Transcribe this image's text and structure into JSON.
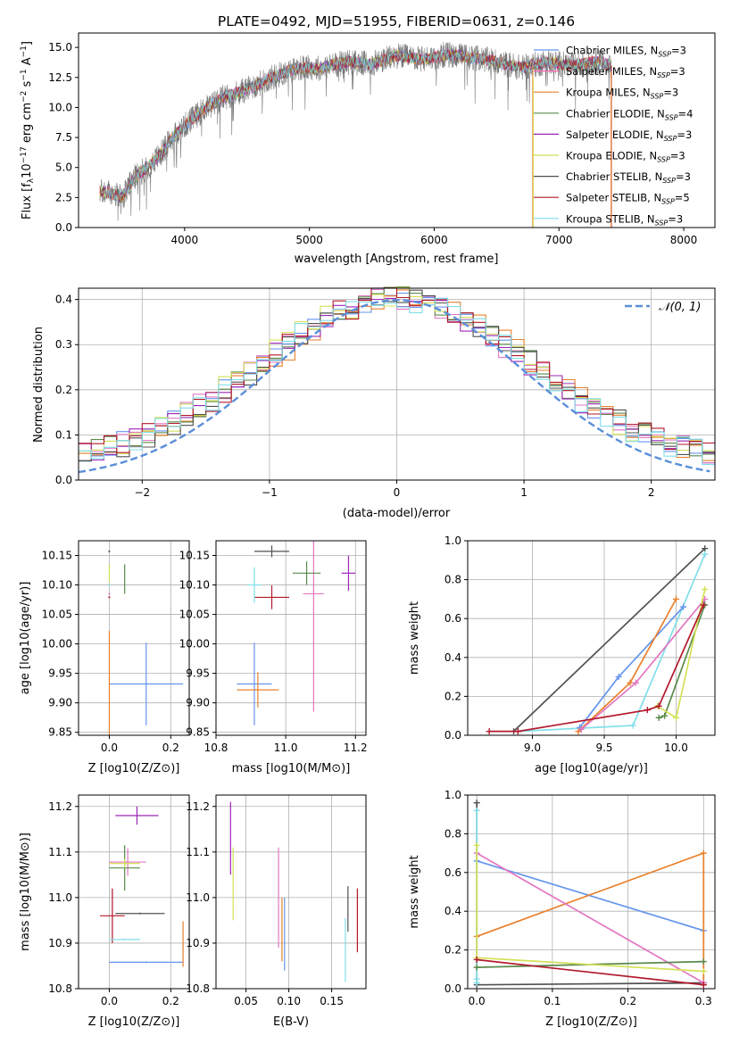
{
  "chart_data": [
    {
      "id": "spectrum",
      "type": "line",
      "title": "PLATE=0492, MJD=51955, FIBERID=0631, z=0.146",
      "xlabel": "wavelength [Angstrom, rest frame]",
      "ylabel": "Flux [f_λ 10^-17 erg cm^-2 s^-1 A^-1]",
      "xlim": [
        3150,
        8250
      ],
      "ylim": [
        0,
        16.2
      ],
      "xticks": [
        4000,
        5000,
        6000,
        7000,
        8000
      ],
      "yticks": [
        0.0,
        2.5,
        5.0,
        7.5,
        10.0,
        12.5,
        15.0
      ],
      "legend_position": "top-right",
      "legend": [
        {
          "name": "Chabrier MILES, N_SSP=3",
          "color": "#6495ed"
        },
        {
          "name": "Salpeter MILES, N_SSP=3",
          "color": "#ff69b4"
        },
        {
          "name": "Kroupa MILES, N_SSP=3",
          "color": "#e8802c"
        },
        {
          "name": "Chabrier ELODIE, N_SSP=4",
          "color": "#5a8a4a"
        },
        {
          "name": "Salpeter ELODIE, N_SSP=3",
          "color": "#9b26b6"
        },
        {
          "name": "Kroupa ELODIE, N_SSP=3",
          "color": "#d4e157"
        },
        {
          "name": "Chabrier STELIB, N_SSP=3",
          "color": "#505050"
        },
        {
          "name": "Salpeter STELIB, N_SSP=5",
          "color": "#b2182b"
        },
        {
          "name": "Kroupa STELIB, N_SSP=3",
          "color": "#80deea"
        }
      ],
      "series_anchor": {
        "x": [
          3320,
          3400,
          3500,
          3600,
          3700,
          3800,
          3900,
          4000,
          4150,
          4300,
          4500,
          4700,
          4900,
          5100,
          5300,
          5500,
          5700,
          5900,
          6100,
          6300,
          6500,
          6700,
          6900,
          7100,
          7300,
          7420
        ],
        "y": [
          3.0,
          2.9,
          2.5,
          4.2,
          5.0,
          6.0,
          7.5,
          8.5,
          9.8,
          10.8,
          11.5,
          12.5,
          13.3,
          13.3,
          13.8,
          13.6,
          14.3,
          14.0,
          14.4,
          14.2,
          13.8,
          13.3,
          13.8,
          13.5,
          13.8,
          13.5
        ]
      }
    },
    {
      "id": "residuals",
      "type": "line",
      "xlabel": "(data-model)/error",
      "ylabel": "Normed distribution",
      "xlim": [
        -2.5,
        2.5
      ],
      "ylim": [
        0,
        0.425
      ],
      "xticks": [
        -2,
        -1,
        0,
        1,
        2
      ],
      "yticks": [
        0.0,
        0.1,
        0.2,
        0.3,
        0.4
      ],
      "grid": true,
      "legend_position": "top-right",
      "reference_curve": {
        "name": "𝒩(0, 1)",
        "mean": 0,
        "sigma": 1,
        "color": "#5b8fd9"
      },
      "histogram_colors": [
        "#6495ed",
        "#e377c2",
        "#e8802c",
        "#5a8a4a",
        "#9b26b6",
        "#d4e157",
        "#505050",
        "#b2182b",
        "#80deea"
      ]
    },
    {
      "id": "age-vs-Z",
      "type": "scatter",
      "xlabel": "Z [log10(Z/Z⊙)]",
      "ylabel": "age [log10(age/yr)]",
      "xlim": [
        -0.1,
        0.26
      ],
      "ylim": [
        9.845,
        10.175
      ],
      "xticks": [
        "0.0",
        "0.2"
      ],
      "yticks": [
        "9.85",
        "9.90",
        "9.95",
        "10.00",
        "10.05",
        "10.10",
        "10.15"
      ],
      "points": [
        {
          "x": 0.12,
          "y": 9.932,
          "xerr": 0.12,
          "yerr": 0.07,
          "color": "#6495ed"
        },
        {
          "x": 0.0,
          "y": 9.922,
          "xerr": 0.0,
          "yerr": 0.1,
          "color": "#e8802c"
        },
        {
          "x": 0.0,
          "y": 10.085,
          "xerr": 0.0,
          "yerr": 0.0,
          "color": "#e377c2"
        },
        {
          "x": 0.05,
          "y": 10.11,
          "xerr": 0.0,
          "yerr": 0.025,
          "color": "#5a8a4a"
        },
        {
          "x": 0.0,
          "y": 10.12,
          "xerr": 0.0,
          "yerr": 0.015,
          "color": "#d4e157"
        },
        {
          "x": 0.0,
          "y": 10.157,
          "xerr": 0.0,
          "yerr": 0.0,
          "color": "#505050"
        },
        {
          "x": 0.0,
          "y": 10.079,
          "xerr": 0.0,
          "yerr": 0.0,
          "color": "#b2182b"
        },
        {
          "x": 0.0,
          "y": 10.1,
          "xerr": 0.0,
          "yerr": 0.0,
          "color": "#80deea"
        }
      ]
    },
    {
      "id": "age-vs-mass",
      "type": "scatter",
      "xlabel": "mass [log10(M/M⊙)]",
      "ylabel": "",
      "xlim": [
        10.8,
        11.23
      ],
      "ylim": [
        9.845,
        10.175
      ],
      "xticks": [
        "10.8",
        "11.0",
        "11.2"
      ],
      "yticks": [
        "9.85",
        "9.90",
        "9.95",
        "10.00",
        "10.05",
        "10.10",
        "10.15"
      ],
      "points": [
        {
          "x": 10.91,
          "y": 9.932,
          "xerr": 0.05,
          "yerr": 0.07,
          "color": "#6495ed"
        },
        {
          "x": 10.92,
          "y": 9.922,
          "xerr": 0.06,
          "yerr": 0.03,
          "color": "#e8802c"
        },
        {
          "x": 11.08,
          "y": 10.085,
          "xerr": 0.03,
          "yerr": 0.2,
          "color": "#e377c2"
        },
        {
          "x": 11.06,
          "y": 10.12,
          "xerr": 0.04,
          "yerr": 0.02,
          "color": "#5a8a4a"
        },
        {
          "x": 11.18,
          "y": 10.12,
          "xerr": 0.02,
          "yerr": 0.03,
          "color": "#9b26b6"
        },
        {
          "x": 10.96,
          "y": 10.157,
          "xerr": 0.05,
          "yerr": 0.01,
          "color": "#505050"
        },
        {
          "x": 10.96,
          "y": 10.079,
          "xerr": 0.05,
          "yerr": 0.02,
          "color": "#b2182b"
        },
        {
          "x": 10.91,
          "y": 10.1,
          "xerr": 0.02,
          "yerr": 0.03,
          "color": "#80deea"
        }
      ]
    },
    {
      "id": "weight-vs-age",
      "type": "line",
      "xlabel": "age [log10(age/yr)]",
      "ylabel": "mass weight",
      "xlim": [
        8.55,
        10.27
      ],
      "ylim": [
        0,
        1
      ],
      "xticks": [
        "9.0",
        "9.5",
        "10.0"
      ],
      "yticks": [
        "0.0",
        "0.2",
        "0.4",
        "0.6",
        "0.8",
        "1.0"
      ],
      "grid": true,
      "series": [
        {
          "color": "#505050",
          "x": [
            8.87,
            10.2
          ],
          "y": [
            0.02,
            0.96
          ]
        },
        {
          "color": "#80deea",
          "x": [
            8.9,
            9.7,
            10.2
          ],
          "y": [
            0.02,
            0.05,
            0.93
          ]
        },
        {
          "color": "#6495ed",
          "x": [
            9.33,
            9.6,
            10.05
          ],
          "y": [
            0.04,
            0.3,
            0.66
          ]
        },
        {
          "color": "#e8802c",
          "x": [
            9.32,
            9.68,
            10.0
          ],
          "y": [
            0.02,
            0.27,
            0.7
          ]
        },
        {
          "color": "#e377c2",
          "x": [
            9.34,
            9.72,
            10.2
          ],
          "y": [
            0.03,
            0.27,
            0.7
          ]
        },
        {
          "color": "#5a8a4a",
          "x": [
            9.88,
            9.92,
            10.2
          ],
          "y": [
            0.09,
            0.1,
            0.67
          ]
        },
        {
          "color": "#d4e157",
          "x": [
            9.87,
            10.0,
            10.2
          ],
          "y": [
            0.15,
            0.09,
            0.75
          ]
        },
        {
          "color": "#b2182b",
          "x": [
            8.7,
            8.9,
            9.8,
            9.88,
            10.19
          ],
          "y": [
            0.02,
            0.02,
            0.13,
            0.15,
            0.67
          ]
        }
      ]
    },
    {
      "id": "mass-vs-Z",
      "type": "scatter",
      "xlabel": "Z [log10(Z/Z⊙)]",
      "ylabel": "mass [log10(M/M⊙)]",
      "xlim": [
        -0.1,
        0.26
      ],
      "ylim": [
        10.8,
        11.225
      ],
      "xticks": [
        "0.0",
        "0.2"
      ],
      "yticks": [
        "10.8",
        "10.9",
        "11.0",
        "11.1",
        "11.2"
      ],
      "points": [
        {
          "x": 0.12,
          "y": 10.858,
          "xerr": 0.12,
          "yerr": 0.0,
          "color": "#6495ed"
        },
        {
          "x": 0.24,
          "y": 10.898,
          "xerr": 0.0,
          "yerr": 0.05,
          "color": "#e8802c"
        },
        {
          "x": 0.06,
          "y": 11.078,
          "xerr": 0.06,
          "yerr": 0.03,
          "color": "#e377c2"
        },
        {
          "x": 0.05,
          "y": 11.065,
          "xerr": 0.05,
          "yerr": 0.05,
          "color": "#5a8a4a"
        },
        {
          "x": 0.09,
          "y": 11.18,
          "xerr": 0.07,
          "yerr": 0.02,
          "color": "#9b26b6"
        },
        {
          "x": 0.05,
          "y": 11.075,
          "xerr": 0.05,
          "yerr": 0.01,
          "color": "#d4e157"
        },
        {
          "x": 0.1,
          "y": 10.965,
          "xerr": 0.08,
          "yerr": 0.0,
          "color": "#505050"
        },
        {
          "x": 0.01,
          "y": 10.96,
          "xerr": 0.04,
          "yerr": 0.06,
          "color": "#b2182b"
        },
        {
          "x": 0.05,
          "y": 10.908,
          "xerr": 0.05,
          "yerr": 0.0,
          "color": "#80deea"
        }
      ]
    },
    {
      "id": "mass-vs-ebv",
      "type": "scatter",
      "xlabel": "E(B-V)",
      "ylabel": "",
      "xlim": [
        0.015,
        0.19
      ],
      "ylim": [
        10.8,
        11.225
      ],
      "xticks": [
        "0.05",
        "0.10",
        "0.15"
      ],
      "yticks": [
        "10.8",
        "10.9",
        "11.0",
        "11.1",
        "11.2"
      ],
      "points": [
        {
          "x": 0.032,
          "y": 11.13,
          "yerr": 0.08,
          "color": "#9b26b6"
        },
        {
          "x": 0.035,
          "y": 11.03,
          "yerr": 0.08,
          "color": "#d4e157"
        },
        {
          "x": 0.088,
          "y": 11.0,
          "yerr": 0.11,
          "color": "#e377c2"
        },
        {
          "x": 0.092,
          "y": 10.93,
          "yerr": 0.07,
          "color": "#e8802c"
        },
        {
          "x": 0.095,
          "y": 10.92,
          "yerr": 0.08,
          "color": "#6495ed"
        },
        {
          "x": 0.166,
          "y": 10.885,
          "yerr": 0.07,
          "color": "#80deea"
        },
        {
          "x": 0.169,
          "y": 10.975,
          "yerr": 0.05,
          "color": "#505050"
        },
        {
          "x": 0.18,
          "y": 10.95,
          "yerr": 0.07,
          "color": "#b2182b"
        }
      ]
    },
    {
      "id": "weight-vs-Z",
      "type": "line",
      "xlabel": "Z [log10(Z/Z⊙)]",
      "ylabel": "mass weight",
      "xlim": [
        -0.012,
        0.315
      ],
      "ylim": [
        0,
        1
      ],
      "xticks": [
        "0.0",
        "0.1",
        "0.2",
        "0.3"
      ],
      "yticks": [
        "0.0",
        "0.2",
        "0.4",
        "0.6",
        "0.8",
        "1.0"
      ],
      "grid": true,
      "series": [
        {
          "color": "#505050",
          "x": [
            0.0,
            0.0,
            0.3
          ],
          "y": [
            0.96,
            0.02,
            0.03
          ]
        },
        {
          "color": "#80deea",
          "x": [
            0.0,
            0.0,
            0.0
          ],
          "y": [
            0.92,
            0.05,
            0.03
          ]
        },
        {
          "color": "#6495ed",
          "x": [
            0.0,
            0.3
          ],
          "y": [
            0.66,
            0.3
          ]
        },
        {
          "color": "#e8802c",
          "x": [
            0.0,
            0.3,
            0.3
          ],
          "y": [
            0.27,
            0.7,
            0.02
          ]
        },
        {
          "color": "#e377c2",
          "x": [
            0.0,
            0.3
          ],
          "y": [
            0.7,
            0.03
          ]
        },
        {
          "color": "#5a8a4a",
          "x": [
            0.0,
            0.3
          ],
          "y": [
            0.11,
            0.14
          ]
        },
        {
          "color": "#d4e157",
          "x": [
            0.0,
            0.0,
            0.3
          ],
          "y": [
            0.74,
            0.16,
            0.09
          ]
        },
        {
          "color": "#b2182b",
          "x": [
            0.0,
            0.3
          ],
          "y": [
            0.15,
            0.02
          ]
        }
      ]
    }
  ]
}
